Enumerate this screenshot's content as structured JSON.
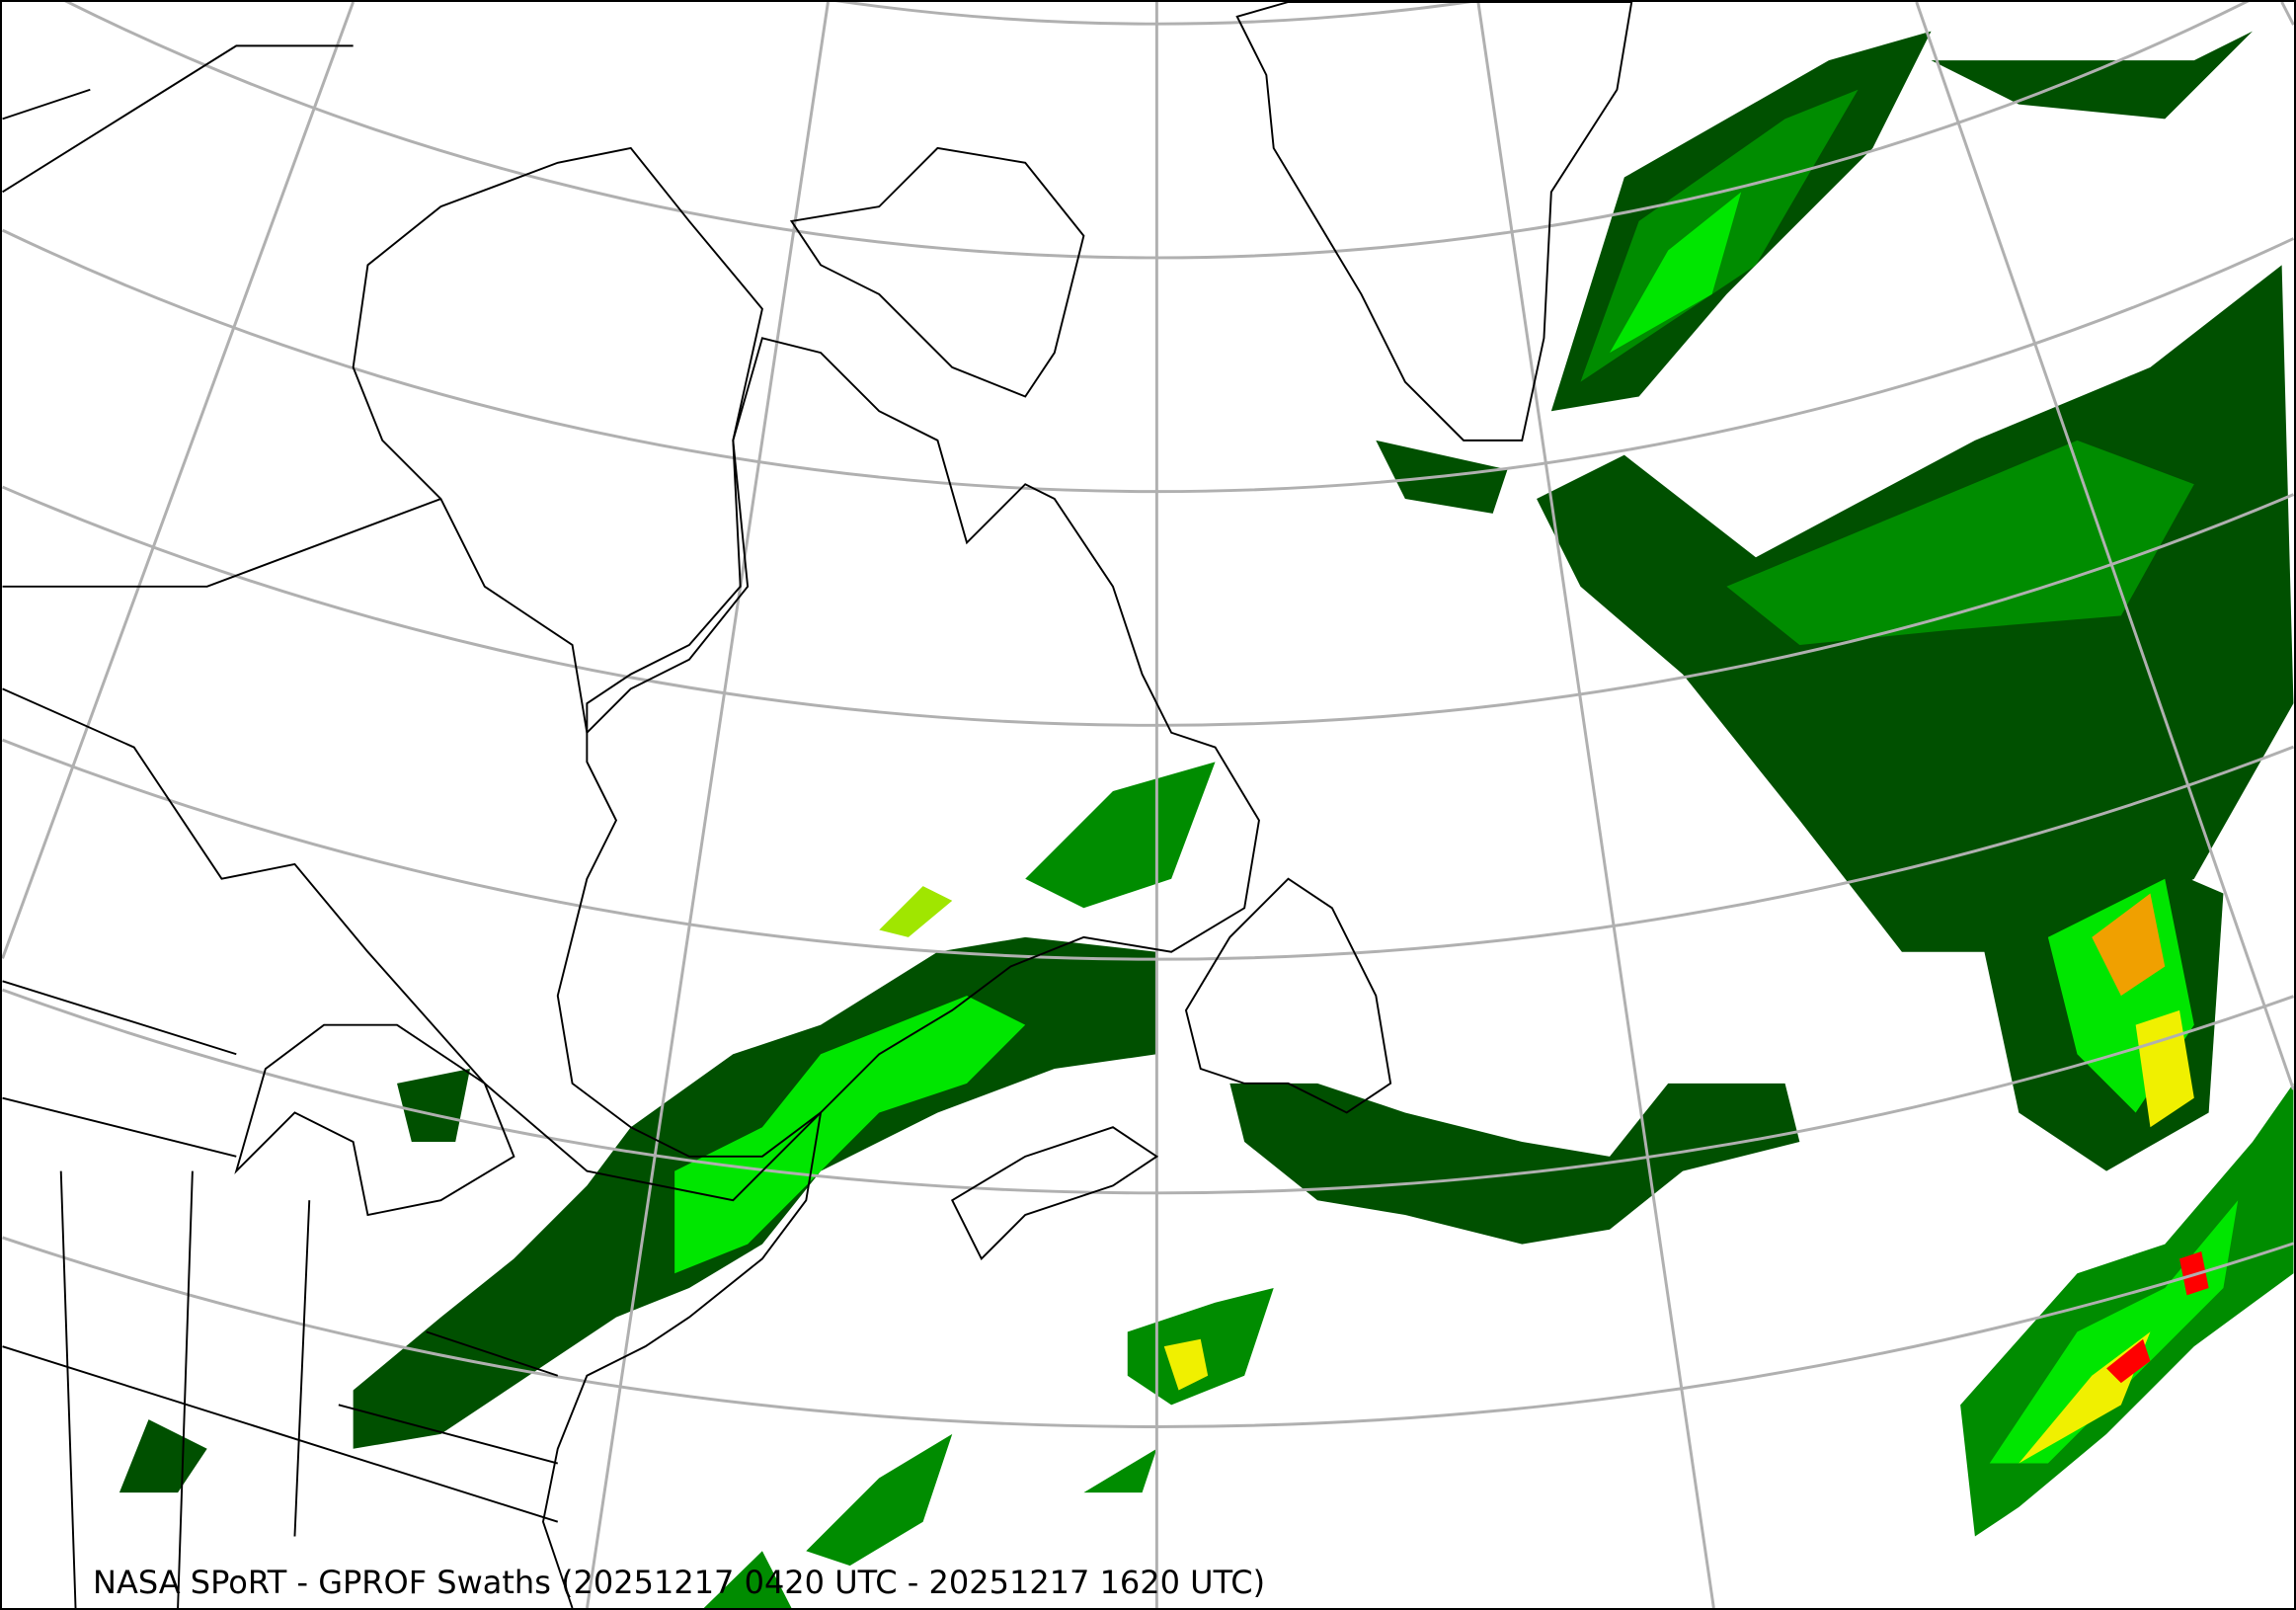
{
  "caption": "NASA SPoRT - GPROF Swaths (20251217 0420 UTC - 20251217 1620 UTC)",
  "colors": {
    "graticule": "#b0b0b0",
    "coastline": "#000000",
    "precip_very_light": "#005000",
    "precip_light": "#008c00",
    "precip_moderate": "#00e600",
    "precip_heavy": "#a0e600",
    "precip_very_heavy": "#f0f000",
    "precip_intense": "#f0a000",
    "precip_extreme": "#ff0000"
  },
  "layers": [
    "graticule",
    "coastlines",
    "state-borders",
    "precipitation-swaths"
  ]
}
